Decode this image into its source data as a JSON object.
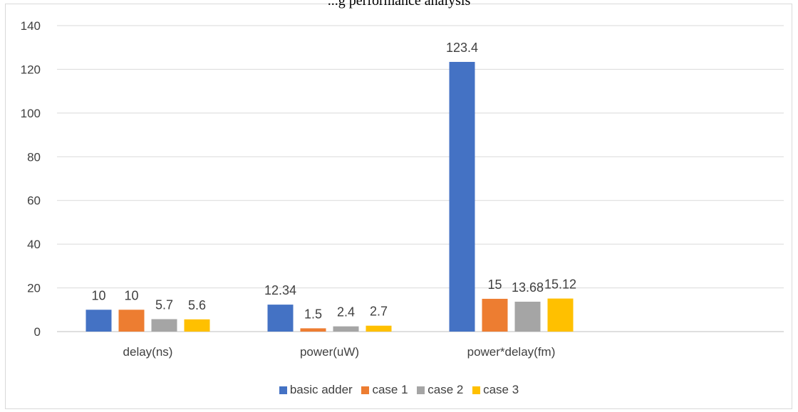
{
  "chart_data": {
    "type": "bar",
    "title": "...g performance analysis",
    "categories": [
      "delay(ns)",
      "power(uW)",
      "power*delay(fm)"
    ],
    "series": [
      {
        "name": "basic adder",
        "color": "#4472C4",
        "values": [
          10,
          12.34,
          123.4
        ],
        "labels": [
          "10",
          "12.34",
          "123.4"
        ]
      },
      {
        "name": "case 1",
        "color": "#ED7D31",
        "values": [
          10,
          1.5,
          15
        ],
        "labels": [
          "10",
          "1.5",
          "15"
        ]
      },
      {
        "name": "case 2",
        "color": "#A5A5A5",
        "values": [
          5.7,
          2.4,
          13.68
        ],
        "labels": [
          "5.7",
          "2.4",
          "13.68"
        ]
      },
      {
        "name": "case 3",
        "color": "#FFC000",
        "values": [
          5.6,
          2.7,
          15.12
        ],
        "labels": [
          "5.6",
          "2.7",
          "15.12"
        ]
      }
    ],
    "ylim": [
      0,
      140
    ],
    "yticks": [
      "0",
      "20",
      "40",
      "60",
      "80",
      "100",
      "120",
      "140"
    ],
    "grid": true,
    "legend_position": "bottom"
  }
}
